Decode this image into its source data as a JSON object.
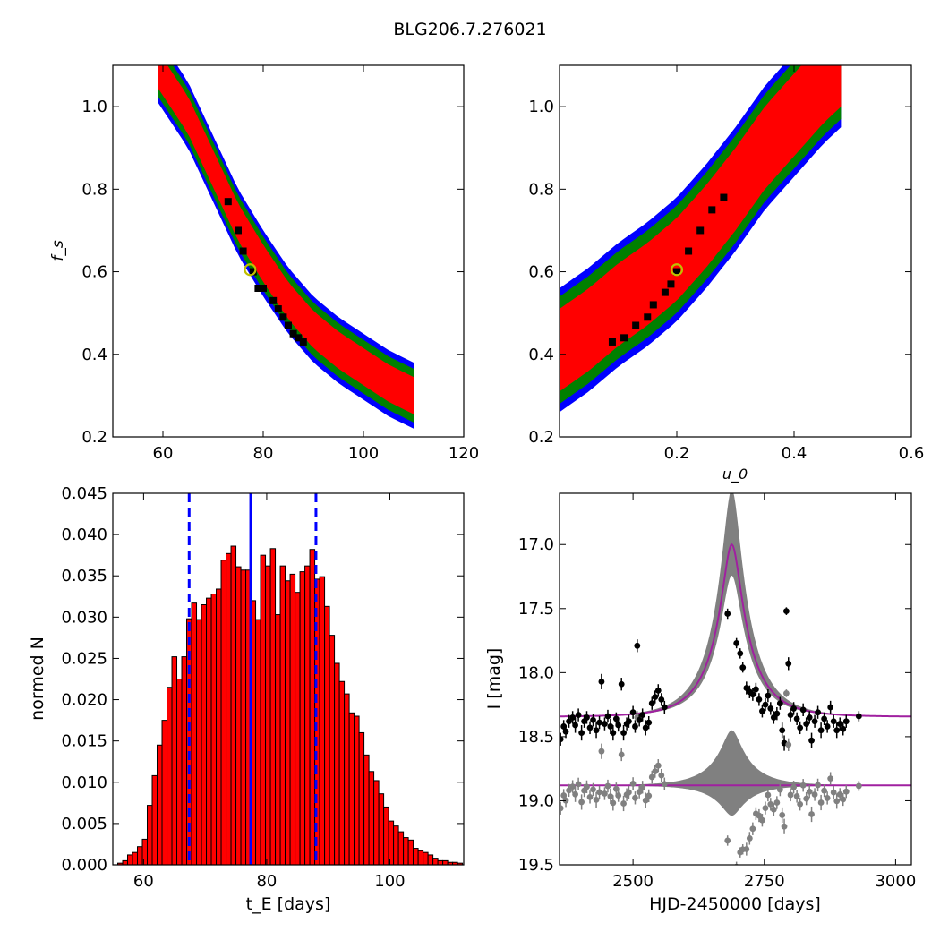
{
  "figure_title": "BLG206.7.276021",
  "colors": {
    "sigma1": "#ff0000",
    "sigma2": "#008000",
    "sigma3": "#0000ff",
    "best_chain": "#000000",
    "best_fit_marker": "#bfbf00",
    "hist_bar": "#ff0000",
    "median_line": "#0000ff",
    "model_curve": "#a020a0",
    "model_band": "#808080",
    "data_points": "#000000",
    "residual_points": "#808080"
  },
  "chart_data": [
    {
      "id": "te_vs_fs",
      "type": "heatmap",
      "title": "",
      "xlabel": "",
      "ylabel": "f_s",
      "xlim": [
        50,
        120
      ],
      "ylim": [
        0.2,
        1.1
      ],
      "xticks": [
        "60",
        "80",
        "100",
        "120"
      ],
      "yticks": [
        "0.2",
        "0.4",
        "0.6",
        "0.8",
        "1.0"
      ],
      "best_fit": {
        "x": 77.4,
        "y": 0.605
      },
      "confidence_band": {
        "centerline": [
          [
            59,
            1.09
          ],
          [
            65,
            0.98
          ],
          [
            70,
            0.85
          ],
          [
            75,
            0.72
          ],
          [
            80,
            0.62
          ],
          [
            85,
            0.53
          ],
          [
            90,
            0.46
          ],
          [
            95,
            0.41
          ],
          [
            100,
            0.37
          ],
          [
            105,
            0.33
          ],
          [
            110,
            0.3
          ]
        ],
        "half_width_1sigma": 0.045,
        "half_width_2sigma": 0.065,
        "half_width_3sigma": 0.08
      },
      "best_chain_points": [
        [
          73,
          0.77
        ],
        [
          75,
          0.7
        ],
        [
          76,
          0.65
        ],
        [
          78,
          0.6
        ],
        [
          79,
          0.56
        ],
        [
          80,
          0.56
        ],
        [
          82,
          0.53
        ],
        [
          83,
          0.51
        ],
        [
          84,
          0.49
        ],
        [
          85,
          0.47
        ],
        [
          86,
          0.45
        ],
        [
          87,
          0.44
        ],
        [
          88,
          0.43
        ]
      ]
    },
    {
      "id": "u0_vs_fs",
      "type": "heatmap",
      "title": "",
      "xlabel": "u_0",
      "ylabel": "",
      "xlim": [
        0.0,
        0.6
      ],
      "ylim": [
        0.2,
        1.1
      ],
      "xticks": [
        "0.2",
        "0.4",
        "0.6"
      ],
      "yticks": [
        "0.2",
        "0.4",
        "0.6",
        "0.8",
        "1.0"
      ],
      "best_fit": {
        "x": 0.2,
        "y": 0.605
      },
      "confidence_band": {
        "centerline": [
          [
            0.0,
            0.41
          ],
          [
            0.05,
            0.46
          ],
          [
            0.1,
            0.52
          ],
          [
            0.15,
            0.57
          ],
          [
            0.2,
            0.63
          ],
          [
            0.25,
            0.71
          ],
          [
            0.3,
            0.8
          ],
          [
            0.35,
            0.9
          ],
          [
            0.4,
            0.98
          ],
          [
            0.45,
            1.06
          ],
          [
            0.48,
            1.1
          ]
        ],
        "half_width_1sigma": 0.1,
        "half_width_2sigma": 0.13,
        "half_width_3sigma": 0.15
      },
      "best_chain_points": [
        [
          0.09,
          0.43
        ],
        [
          0.11,
          0.44
        ],
        [
          0.13,
          0.47
        ],
        [
          0.15,
          0.49
        ],
        [
          0.16,
          0.52
        ],
        [
          0.18,
          0.55
        ],
        [
          0.19,
          0.57
        ],
        [
          0.2,
          0.6
        ],
        [
          0.22,
          0.65
        ],
        [
          0.24,
          0.7
        ],
        [
          0.26,
          0.75
        ],
        [
          0.28,
          0.78
        ]
      ]
    },
    {
      "id": "te_histogram",
      "type": "bar",
      "title": "",
      "xlabel": "t_E  [days]",
      "ylabel": "normed N",
      "xlim": [
        55,
        112
      ],
      "ylim": [
        0.0,
        0.045
      ],
      "xticks": [
        "60",
        "80",
        "100"
      ],
      "yticks": [
        "0.000",
        "0.005",
        "0.010",
        "0.015",
        "0.020",
        "0.025",
        "0.030",
        "0.035",
        "0.040",
        "0.045"
      ],
      "bin_width": 0.8,
      "bin_start": 55.8,
      "values": [
        0.0002,
        0.0005,
        0.0012,
        0.0015,
        0.0022,
        0.0031,
        0.0072,
        0.0108,
        0.0145,
        0.0175,
        0.0215,
        0.0252,
        0.0225,
        0.0252,
        0.0298,
        0.0317,
        0.0297,
        0.0315,
        0.0323,
        0.0328,
        0.0334,
        0.0369,
        0.0377,
        0.0386,
        0.0361,
        0.0357,
        0.0357,
        0.032,
        0.0297,
        0.0375,
        0.0362,
        0.0383,
        0.0303,
        0.0362,
        0.0344,
        0.0352,
        0.033,
        0.0355,
        0.0362,
        0.0382,
        0.0346,
        0.0349,
        0.0313,
        0.0278,
        0.0244,
        0.0222,
        0.0207,
        0.0184,
        0.018,
        0.016,
        0.0133,
        0.0113,
        0.0102,
        0.0086,
        0.007,
        0.0053,
        0.0047,
        0.004,
        0.0033,
        0.003,
        0.002,
        0.0017,
        0.0015,
        0.0012,
        0.0008,
        0.0005,
        0.0005,
        0.0003,
        0.0003,
        0.0002
      ],
      "median": 77.4,
      "bounds": [
        67.4,
        88.0
      ]
    },
    {
      "id": "light_curve",
      "type": "scatter",
      "title": "",
      "xlabel": "HJD-2450000 [days]",
      "ylabel": "I [mag]",
      "xlim": [
        2360,
        3030
      ],
      "ylim": [
        19.5,
        16.6
      ],
      "xticks": [
        "2500",
        "2750",
        "3000"
      ],
      "yticks": [
        "17.0",
        "17.5",
        "18.0",
        "18.5",
        "19.0",
        "19.5"
      ],
      "model": {
        "t0": 2688,
        "u0": 0.2,
        "tE": 77.4,
        "baseline": 18.345,
        "peak": 17.0
      },
      "residual_offset": 18.88,
      "data": [
        [
          2362,
          18.52,
          0.05
        ],
        [
          2368,
          18.42,
          0.05
        ],
        [
          2372,
          18.46,
          0.05
        ],
        [
          2378,
          18.38,
          0.05
        ],
        [
          2385,
          18.35,
          0.05
        ],
        [
          2390,
          18.41,
          0.06
        ],
        [
          2396,
          18.33,
          0.05
        ],
        [
          2402,
          18.47,
          0.06
        ],
        [
          2407,
          18.38,
          0.05
        ],
        [
          2412,
          18.35,
          0.05
        ],
        [
          2418,
          18.43,
          0.05
        ],
        [
          2424,
          18.37,
          0.05
        ],
        [
          2430,
          18.45,
          0.06
        ],
        [
          2436,
          18.39,
          0.05
        ],
        [
          2440,
          18.07,
          0.06
        ],
        [
          2446,
          18.4,
          0.05
        ],
        [
          2452,
          18.34,
          0.05
        ],
        [
          2457,
          18.42,
          0.06
        ],
        [
          2462,
          18.47,
          0.06
        ],
        [
          2468,
          18.36,
          0.05
        ],
        [
          2472,
          18.41,
          0.05
        ],
        [
          2478,
          18.09,
          0.05
        ],
        [
          2482,
          18.47,
          0.06
        ],
        [
          2488,
          18.4,
          0.05
        ],
        [
          2492,
          18.38,
          0.05
        ],
        [
          2500,
          18.31,
          0.05
        ],
        [
          2504,
          18.42,
          0.05
        ],
        [
          2508,
          17.79,
          0.05
        ],
        [
          2512,
          18.37,
          0.05
        ],
        [
          2518,
          18.33,
          0.05
        ],
        [
          2524,
          18.43,
          0.06
        ],
        [
          2530,
          18.39,
          0.05
        ],
        [
          2536,
          18.24,
          0.05
        ],
        [
          2542,
          18.19,
          0.05
        ],
        [
          2548,
          18.14,
          0.05
        ],
        [
          2554,
          18.21,
          0.05
        ],
        [
          2560,
          18.27,
          0.05
        ],
        [
          2680,
          17.54,
          0.04
        ],
        [
          2697,
          17.77,
          0.04
        ],
        [
          2704,
          17.85,
          0.04
        ],
        [
          2709,
          17.96,
          0.04
        ],
        [
          2716,
          18.12,
          0.05
        ],
        [
          2722,
          18.15,
          0.05
        ],
        [
          2728,
          18.17,
          0.05
        ],
        [
          2734,
          18.13,
          0.05
        ],
        [
          2740,
          18.21,
          0.05
        ],
        [
          2746,
          18.3,
          0.05
        ],
        [
          2752,
          18.25,
          0.05
        ],
        [
          2757,
          18.18,
          0.05
        ],
        [
          2762,
          18.28,
          0.05
        ],
        [
          2768,
          18.35,
          0.05
        ],
        [
          2774,
          18.32,
          0.05
        ],
        [
          2780,
          18.24,
          0.05
        ],
        [
          2784,
          18.45,
          0.06
        ],
        [
          2788,
          18.55,
          0.06
        ],
        [
          2792,
          17.52,
          0.03
        ],
        [
          2796,
          17.93,
          0.05
        ],
        [
          2800,
          18.33,
          0.05
        ],
        [
          2806,
          18.28,
          0.05
        ],
        [
          2812,
          18.36,
          0.05
        ],
        [
          2818,
          18.43,
          0.05
        ],
        [
          2824,
          18.29,
          0.05
        ],
        [
          2830,
          18.4,
          0.05
        ],
        [
          2836,
          18.35,
          0.05
        ],
        [
          2840,
          18.53,
          0.06
        ],
        [
          2846,
          18.38,
          0.05
        ],
        [
          2852,
          18.31,
          0.05
        ],
        [
          2858,
          18.45,
          0.06
        ],
        [
          2864,
          18.36,
          0.05
        ],
        [
          2870,
          18.42,
          0.05
        ],
        [
          2876,
          18.27,
          0.05
        ],
        [
          2882,
          18.38,
          0.05
        ],
        [
          2888,
          18.45,
          0.06
        ],
        [
          2894,
          18.4,
          0.05
        ],
        [
          2900,
          18.44,
          0.05
        ],
        [
          2906,
          18.38,
          0.05
        ],
        [
          2930,
          18.34,
          0.04
        ]
      ]
    }
  ]
}
